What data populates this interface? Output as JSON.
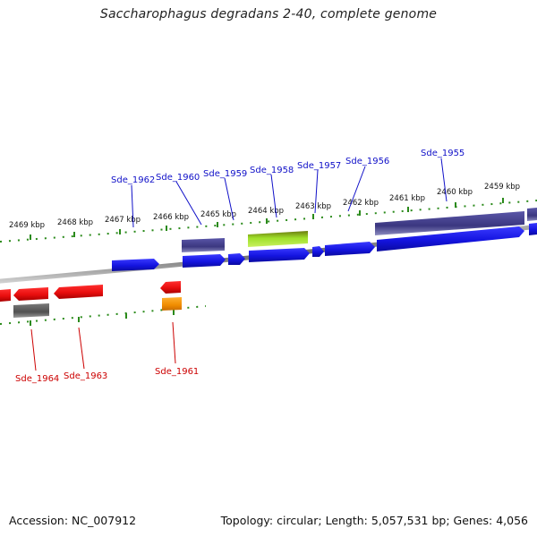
{
  "title": "Saccharophagus degradans 2-40, complete genome",
  "footer": {
    "accession": "Accession: NC_007912",
    "topology": "Topology: circular; Length: 5,057,531 bp; Genes: 4,056"
  },
  "colors": {
    "forward_gene": "#1a1ae6",
    "reverse_gene": "#e81010",
    "forward_label": "#1010c8",
    "reverse_label": "#cc0000",
    "ruler_tick": "#2a8a1a",
    "backbone": "#8a8a8a",
    "feature_dark_blue": "#3d3a80",
    "feature_gray": "#5a5a5a",
    "feature_green": "#8fd61c",
    "feature_orange": "#f08c00"
  },
  "ruler": {
    "units": "kbp",
    "ticks": [
      "2469 kbp",
      "2468 kbp",
      "2467 kbp",
      "2466 kbp",
      "2465 kbp",
      "2464 kbp",
      "2463 kbp",
      "2462 kbp",
      "2461 kbp",
      "2460 kbp",
      "2459 kbp"
    ]
  },
  "genes_forward": [
    "Sde_1962",
    "Sde_1960",
    "Sde_1959",
    "Sde_1958",
    "Sde_1957",
    "Sde_1956",
    "Sde_1955"
  ],
  "genes_reverse": [
    "Sde_1964",
    "Sde_1963",
    "Sde_1961"
  ]
}
